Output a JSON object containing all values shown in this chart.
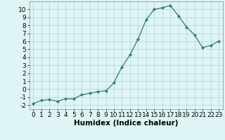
{
  "x": [
    0,
    1,
    2,
    3,
    4,
    5,
    6,
    7,
    8,
    9,
    10,
    11,
    12,
    13,
    14,
    15,
    16,
    17,
    18,
    19,
    20,
    21,
    22,
    23
  ],
  "y": [
    -1.8,
    -1.4,
    -1.3,
    -1.5,
    -1.2,
    -1.2,
    -0.7,
    -0.5,
    -0.3,
    -0.2,
    0.8,
    2.8,
    4.3,
    6.3,
    8.7,
    10.0,
    10.2,
    10.5,
    9.2,
    7.8,
    6.8,
    5.2,
    5.5,
    6.0
  ],
  "xlabel": "Humidex (Indice chaleur)",
  "xlim": [
    -0.5,
    23.5
  ],
  "ylim": [
    -2.5,
    11
  ],
  "yticks": [
    -2,
    -1,
    0,
    1,
    2,
    3,
    4,
    5,
    6,
    7,
    8,
    9,
    10
  ],
  "xticks": [
    0,
    1,
    2,
    3,
    4,
    5,
    6,
    7,
    8,
    9,
    10,
    11,
    12,
    13,
    14,
    15,
    16,
    17,
    18,
    19,
    20,
    21,
    22,
    23
  ],
  "line_color": "#2e7d6e",
  "marker_color": "#2e7d6e",
  "bg_color": "#dff4f4",
  "grid_color": "#aed4d4",
  "label_fontsize": 7.5,
  "tick_fontsize": 6.5
}
